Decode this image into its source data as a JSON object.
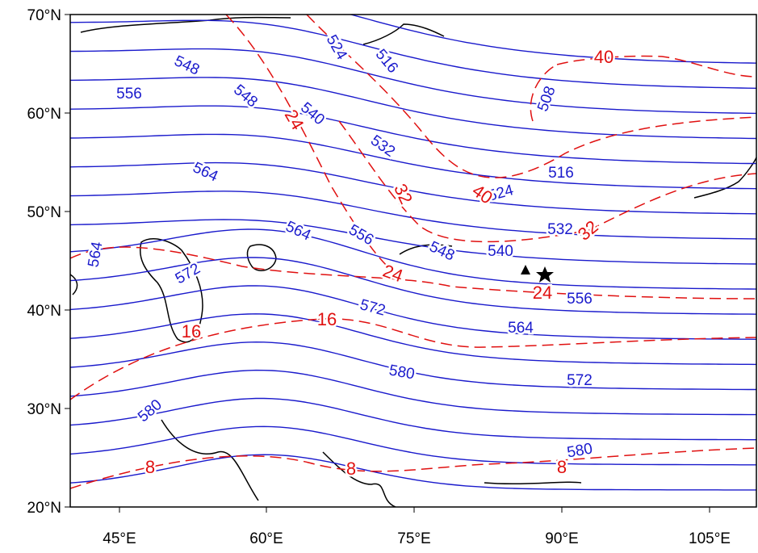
{
  "map": {
    "lat_ticks": [
      "70°N",
      "60°N",
      "50°N",
      "40°N",
      "30°N",
      "20°N"
    ],
    "lon_ticks": [
      "45°E",
      "60°E",
      "75°E",
      "90°E",
      "105°E"
    ],
    "height_labels": [
      "548",
      "548",
      "556",
      "524",
      "516",
      "540",
      "532",
      "508",
      "516",
      "524",
      "564",
      "564",
      "556",
      "548",
      "540",
      "532",
      "572",
      "564",
      "572",
      "556",
      "564",
      "580",
      "572",
      "580",
      "580"
    ],
    "temp_labels": [
      "40",
      "24",
      "32",
      "40",
      "32",
      "24",
      "24",
      "16",
      "16",
      "8",
      "8",
      "8"
    ]
  }
}
